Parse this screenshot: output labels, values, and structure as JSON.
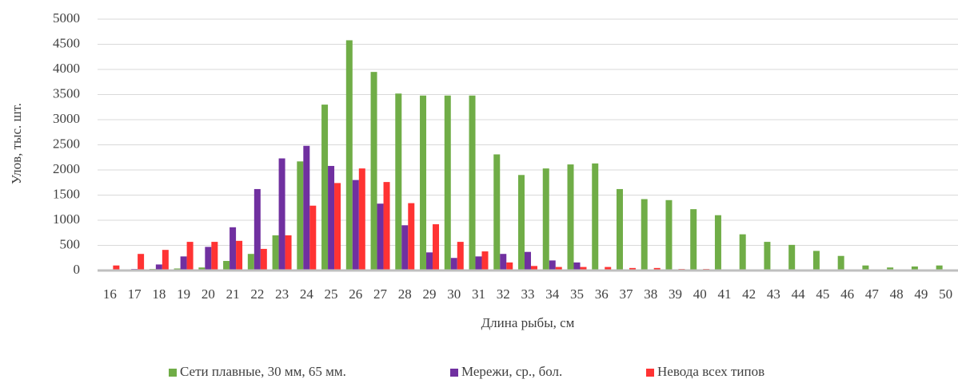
{
  "chart_data": {
    "type": "bar",
    "x_label": "Длина рыбы, см",
    "y_label": "Улов, тыс. шт.",
    "categories": [
      "16",
      "17",
      "18",
      "19",
      "20",
      "21",
      "22",
      "23",
      "24",
      "25",
      "26",
      "27",
      "28",
      "29",
      "30",
      "31",
      "32",
      "33",
      "34",
      "35",
      "36",
      "37",
      "38",
      "39",
      "40",
      "41",
      "42",
      "43",
      "44",
      "45",
      "46",
      "47",
      "48",
      "49",
      "50"
    ],
    "series": [
      {
        "name": "Сети плавные, 30 мм, 65 мм.",
        "color": "#70ad47",
        "values": [
          0,
          20,
          30,
          40,
          60,
          190,
          330,
          700,
          2170,
          3300,
          4580,
          3950,
          3520,
          3480,
          3480,
          3480,
          2310,
          1900,
          2030,
          2110,
          2130,
          1620,
          1420,
          1400,
          1220,
          1100,
          720,
          570,
          510,
          390,
          290,
          100,
          60,
          80,
          100
        ]
      },
      {
        "name": "Мережи, ср., бол.",
        "color": "#7030a0",
        "values": [
          0,
          30,
          120,
          280,
          470,
          860,
          1620,
          2230,
          2480,
          2080,
          1800,
          1330,
          900,
          360,
          250,
          280,
          330,
          370,
          200,
          160,
          20,
          0,
          0,
          0,
          0,
          0,
          0,
          0,
          0,
          0,
          0,
          0,
          0,
          0,
          0
        ]
      },
      {
        "name": "Невода всех типов",
        "color": "#ff3333",
        "values": [
          100,
          330,
          410,
          570,
          570,
          590,
          430,
          700,
          1290,
          1740,
          2030,
          1760,
          1340,
          920,
          570,
          380,
          160,
          90,
          70,
          70,
          70,
          50,
          50,
          30,
          30,
          10,
          0,
          0,
          0,
          0,
          0,
          0,
          0,
          0,
          0
        ]
      }
    ],
    "ylim": [
      0,
      5000
    ],
    "yticks": [
      0,
      500,
      1000,
      1500,
      2000,
      2500,
      3000,
      3500,
      4000,
      4500,
      5000
    ],
    "grid": true,
    "legend": "bottom"
  }
}
